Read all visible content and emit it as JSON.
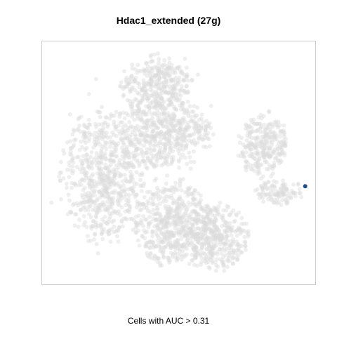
{
  "title": "Hdac1_extended (27g)",
  "caption": "Cells with AUC > 0.31",
  "chart_data": {
    "type": "scatter",
    "title": "Hdac1_extended (27g)",
    "xlabel": "",
    "ylabel": "",
    "grid": false,
    "legend": "none",
    "colors": {
      "background_cells": "#dcdcdc",
      "highlighted_cells": "#1f4e8c",
      "frame": "#cccccc"
    },
    "series": [
      {
        "name": "",
        "color": "#1f4e8c",
        "points": [
          {
            "x": 0.962,
            "y": 0.596
          }
        ]
      }
    ],
    "background_clusters": [
      {
        "cx": 0.23,
        "cy": 0.55,
        "rx": 0.16,
        "ry": 0.28,
        "n": 700
      },
      {
        "cx": 0.48,
        "cy": 0.75,
        "rx": 0.14,
        "ry": 0.18,
        "n": 520
      },
      {
        "cx": 0.63,
        "cy": 0.8,
        "rx": 0.12,
        "ry": 0.14,
        "n": 380
      },
      {
        "cx": 0.45,
        "cy": 0.38,
        "rx": 0.17,
        "ry": 0.15,
        "n": 520
      },
      {
        "cx": 0.42,
        "cy": 0.18,
        "rx": 0.13,
        "ry": 0.12,
        "n": 340
      },
      {
        "cx": 0.81,
        "cy": 0.43,
        "rx": 0.09,
        "ry": 0.13,
        "n": 280
      },
      {
        "cx": 0.87,
        "cy": 0.62,
        "rx": 0.09,
        "ry": 0.05,
        "n": 110
      }
    ]
  }
}
